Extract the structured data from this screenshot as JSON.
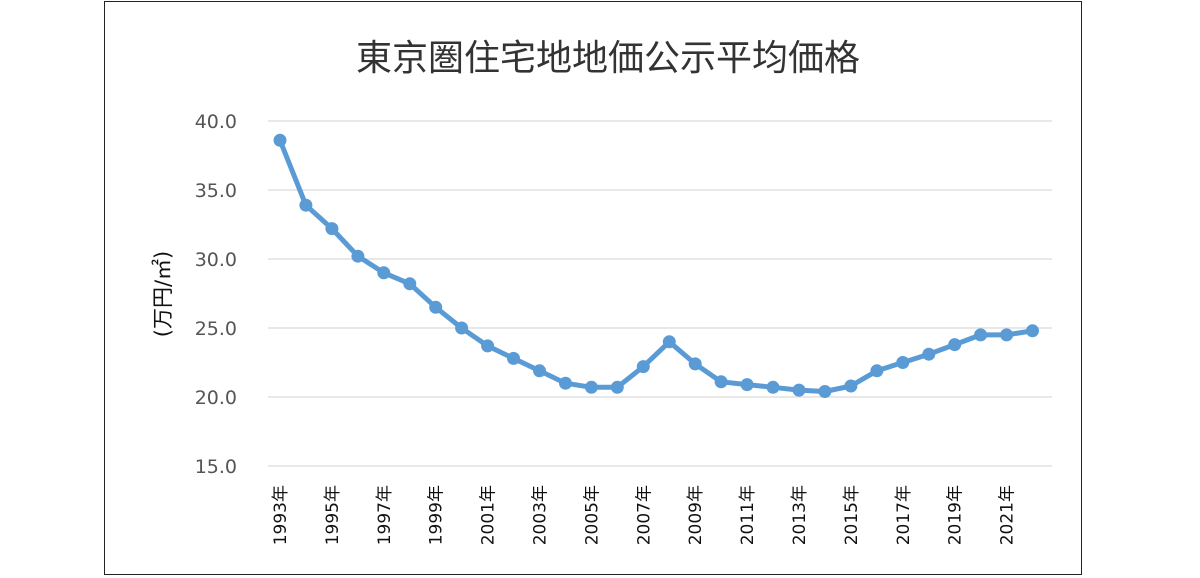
{
  "chart_data": {
    "type": "line",
    "title": "東京圏住宅地地価公示平均価格",
    "ylabel": "(万円/㎡)",
    "xlabel": "",
    "ylim": [
      15,
      40
    ],
    "yticks": [
      15,
      20,
      25,
      30,
      35,
      40
    ],
    "ytick_labels": [
      "15.0",
      "20.0",
      "25.0",
      "30.0",
      "35.0",
      "40.0"
    ],
    "x": [
      1993,
      1994,
      1995,
      1996,
      1997,
      1998,
      1999,
      2000,
      2001,
      2002,
      2003,
      2004,
      2005,
      2006,
      2007,
      2008,
      2009,
      2010,
      2011,
      2012,
      2013,
      2014,
      2015,
      2016,
      2017,
      2018,
      2019,
      2020,
      2021,
      2022
    ],
    "xtick_labels": [
      "1993年",
      "1995年",
      "1997年",
      "1999年",
      "2001年",
      "2003年",
      "2005年",
      "2007年",
      "2009年",
      "2011年",
      "2013年",
      "2015年",
      "2017年",
      "2019年",
      "2021年"
    ],
    "series": [
      {
        "color": "#5b9bd5",
        "values": [
          38.6,
          33.9,
          32.2,
          30.2,
          29.0,
          28.2,
          26.5,
          25.0,
          23.7,
          22.8,
          21.9,
          21.0,
          20.7,
          20.7,
          22.2,
          24.0,
          22.4,
          21.1,
          20.9,
          20.7,
          20.5,
          20.4,
          20.8,
          21.9,
          22.5,
          23.1,
          23.8,
          24.5,
          24.5,
          24.8
        ]
      }
    ],
    "grid": true,
    "legend": "none"
  }
}
